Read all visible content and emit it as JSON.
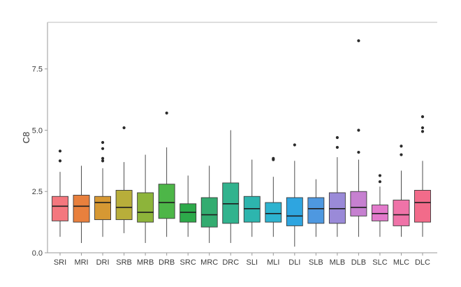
{
  "chart_data": {
    "type": "box",
    "ylabel": "C8",
    "xlabel": "",
    "ylim": [
      0,
      9.4
    ],
    "yticks": [
      0.0,
      2.5,
      5.0,
      7.5
    ],
    "ytick_labels": [
      "0.0",
      "2.5",
      "5.0",
      "7.5"
    ],
    "grid": false,
    "legend": "none",
    "categories": [
      "SRI",
      "MRI",
      "DRI",
      "SRB",
      "MRB",
      "DRB",
      "SRC",
      "MRC",
      "DRC",
      "SLI",
      "MLI",
      "DLI",
      "SLB",
      "MLB",
      "DLB",
      "SLC",
      "MLC",
      "DLC"
    ],
    "boxes": [
      {
        "category": "SRI",
        "color": "#F4777E",
        "min": 0.65,
        "q1": 1.3,
        "median": 1.9,
        "q3": 2.3,
        "max": 3.3,
        "outliers": [
          3.75,
          4.15
        ]
      },
      {
        "category": "MRI",
        "color": "#E8803D",
        "min": 0.4,
        "q1": 1.25,
        "median": 1.9,
        "q3": 2.35,
        "max": 3.55,
        "outliers": []
      },
      {
        "category": "DRI",
        "color": "#D69833",
        "min": 0.65,
        "q1": 1.35,
        "median": 2.05,
        "q3": 2.3,
        "max": 3.45,
        "outliers": [
          3.75,
          3.85,
          4.25,
          4.5
        ]
      },
      {
        "category": "SRB",
        "color": "#B8AE3A",
        "min": 0.8,
        "q1": 1.35,
        "median": 1.85,
        "q3": 2.55,
        "max": 3.7,
        "outliers": [
          5.1
        ]
      },
      {
        "category": "MRB",
        "color": "#8DB43A",
        "min": 0.4,
        "q1": 1.25,
        "median": 1.65,
        "q3": 2.45,
        "max": 4.0,
        "outliers": []
      },
      {
        "category": "DRB",
        "color": "#4DB648",
        "min": 0.65,
        "q1": 1.4,
        "median": 2.05,
        "q3": 2.8,
        "max": 4.3,
        "outliers": [
          5.7
        ]
      },
      {
        "category": "SRC",
        "color": "#2DAA4A",
        "min": 0.65,
        "q1": 1.25,
        "median": 1.65,
        "q3": 2.0,
        "max": 3.15,
        "outliers": []
      },
      {
        "category": "MRC",
        "color": "#33AC70",
        "min": 0.4,
        "q1": 1.05,
        "median": 1.55,
        "q3": 2.25,
        "max": 3.55,
        "outliers": []
      },
      {
        "category": "DRC",
        "color": "#31B38E",
        "min": 0.4,
        "q1": 1.2,
        "median": 2.0,
        "q3": 2.85,
        "max": 5.0,
        "outliers": []
      },
      {
        "category": "SLI",
        "color": "#2DB5AE",
        "min": 0.65,
        "q1": 1.25,
        "median": 1.8,
        "q3": 2.3,
        "max": 3.8,
        "outliers": []
      },
      {
        "category": "MLI",
        "color": "#2DB3CF",
        "min": 0.65,
        "q1": 1.25,
        "median": 1.6,
        "q3": 2.05,
        "max": 3.1,
        "outliers": [
          3.8,
          3.85
        ]
      },
      {
        "category": "DLI",
        "color": "#2EA5E0",
        "min": 0.25,
        "q1": 1.1,
        "median": 1.5,
        "q3": 2.25,
        "max": 3.75,
        "outliers": [
          4.4
        ]
      },
      {
        "category": "SLB",
        "color": "#4E98E0",
        "min": 0.65,
        "q1": 1.2,
        "median": 1.8,
        "q3": 2.25,
        "max": 3.0,
        "outliers": []
      },
      {
        "category": "MLB",
        "color": "#9A8AD8",
        "min": 0.65,
        "q1": 1.2,
        "median": 1.8,
        "q3": 2.45,
        "max": 3.9,
        "outliers": [
          4.3,
          4.7
        ]
      },
      {
        "category": "DLB",
        "color": "#C680D0",
        "min": 0.65,
        "q1": 1.5,
        "median": 1.85,
        "q3": 2.5,
        "max": 3.8,
        "outliers": [
          4.1,
          5.0,
          8.65
        ]
      },
      {
        "category": "SLC",
        "color": "#E27ACB",
        "min": 0.65,
        "q1": 1.3,
        "median": 1.6,
        "q3": 1.95,
        "max": 2.7,
        "outliers": [
          2.9,
          3.15
        ]
      },
      {
        "category": "MLC",
        "color": "#EF73A8",
        "min": 0.65,
        "q1": 1.1,
        "median": 1.55,
        "q3": 2.15,
        "max": 3.35,
        "outliers": [
          4.0,
          4.35
        ]
      },
      {
        "category": "DLC",
        "color": "#F26B8A",
        "min": 0.65,
        "q1": 1.25,
        "median": 2.05,
        "q3": 2.55,
        "max": 3.75,
        "outliers": [
          4.95,
          5.1,
          5.55
        ]
      }
    ]
  }
}
